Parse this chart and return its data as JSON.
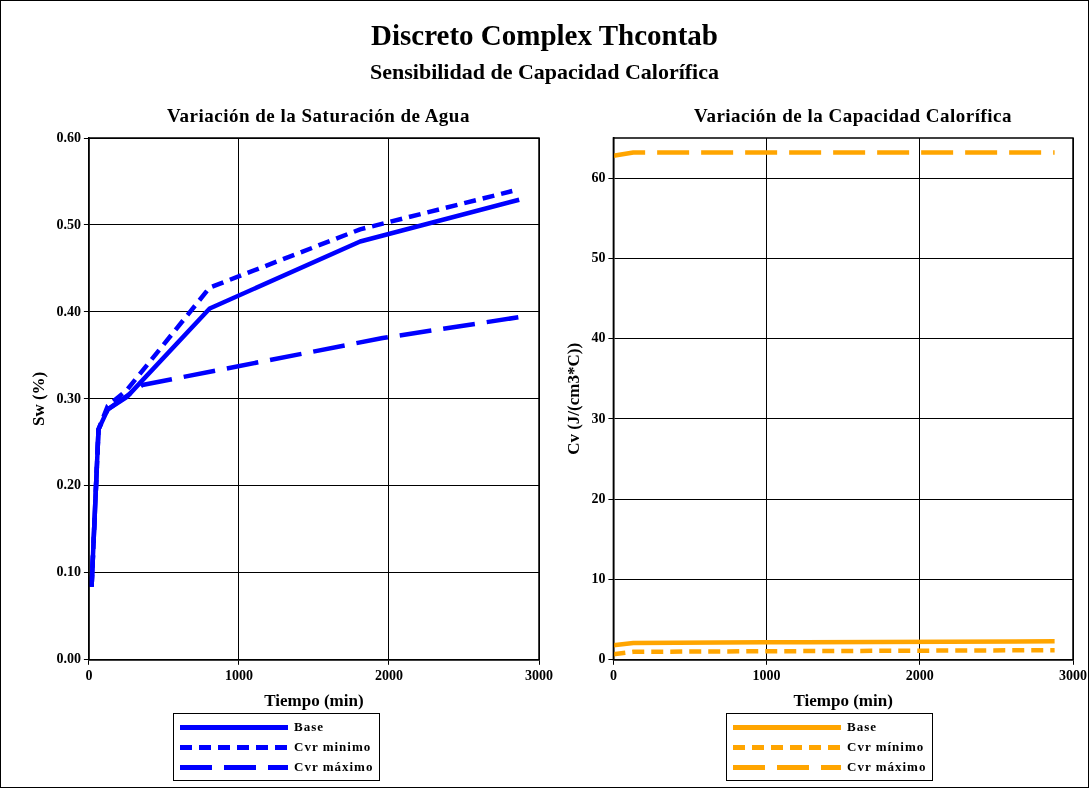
{
  "chart_data": [
    {
      "type": "line",
      "title": "Variación de la Saturación de Agua",
      "annotations": [
        "Discreto Complex Thcontab",
        "Sensibilidad de Capacidad Calorífica"
      ],
      "xlabel": "Tiempo (min)",
      "ylabel": "Sw (%)",
      "xlim": [
        0,
        3000
      ],
      "xticks": [
        0,
        1000,
        2000,
        3000
      ],
      "ylim": [
        0,
        0.6
      ],
      "yticks": [
        {
          "value": 0,
          "label": "0.00"
        },
        {
          "value": 0.1,
          "label": "0.10"
        },
        {
          "value": 0.2,
          "label": "0.20"
        },
        {
          "value": 0.3,
          "label": "0.30"
        },
        {
          "value": 0.4,
          "label": "0.40"
        },
        {
          "value": 0.5,
          "label": "0.50"
        },
        {
          "value": 0.6,
          "label": "0.60"
        }
      ],
      "grid": true,
      "legend": "bottom",
      "series": [
        {
          "name": "Base",
          "color": "#0000ff",
          "line_style": "solid",
          "x": [
            18,
            64,
            126,
            252,
            805,
            1808,
            2868
          ],
          "values": [
            0.084,
            0.265,
            0.288,
            0.302,
            0.404,
            0.481,
            0.529
          ]
        },
        {
          "name": "Cvr minimo",
          "color": "#0000ff",
          "line_style": "dotted",
          "x": [
            18,
            64,
            126,
            252,
            805,
            1808,
            2822
          ],
          "values": [
            0.084,
            0.265,
            0.292,
            0.31,
            0.428,
            0.495,
            0.539
          ]
        },
        {
          "name": "Cvr máximo",
          "color": "#0000ff",
          "line_style": "dashed",
          "x": [
            18,
            64,
            126,
            356,
            1958,
            2868
          ],
          "values": [
            0.084,
            0.265,
            0.288,
            0.316,
            0.37,
            0.394
          ]
        }
      ]
    },
    {
      "type": "line",
      "title": "Variación de la Capacidad Calorífica",
      "xlabel": "Tiempo (min)",
      "ylabel": "Cv (J/(cm3*C))",
      "xlim": [
        0,
        3000
      ],
      "xticks": [
        0,
        1000,
        2000,
        3000
      ],
      "ylim": [
        0,
        65
      ],
      "yticks": [
        0,
        10,
        20,
        30,
        40,
        50,
        60
      ],
      "grid": true,
      "legend": "bottom",
      "series": [
        {
          "name": "Base",
          "color": "#ffa500",
          "line_style": "solid",
          "x": [
            0,
            130,
            1250,
            2880
          ],
          "values": [
            1.8,
            2.1,
            2.2,
            2.3
          ]
        },
        {
          "name": "Cvr mínimo",
          "color": "#ffa500",
          "line_style": "dotted",
          "x": [
            0,
            130,
            2880
          ],
          "values": [
            0.7,
            1.0,
            1.2
          ]
        },
        {
          "name": "Cvr máximo",
          "color": "#ffa500",
          "line_style": "dashed",
          "x": [
            0,
            130,
            2880
          ],
          "values": [
            62.8,
            63.2,
            63.2
          ]
        }
      ]
    }
  ]
}
